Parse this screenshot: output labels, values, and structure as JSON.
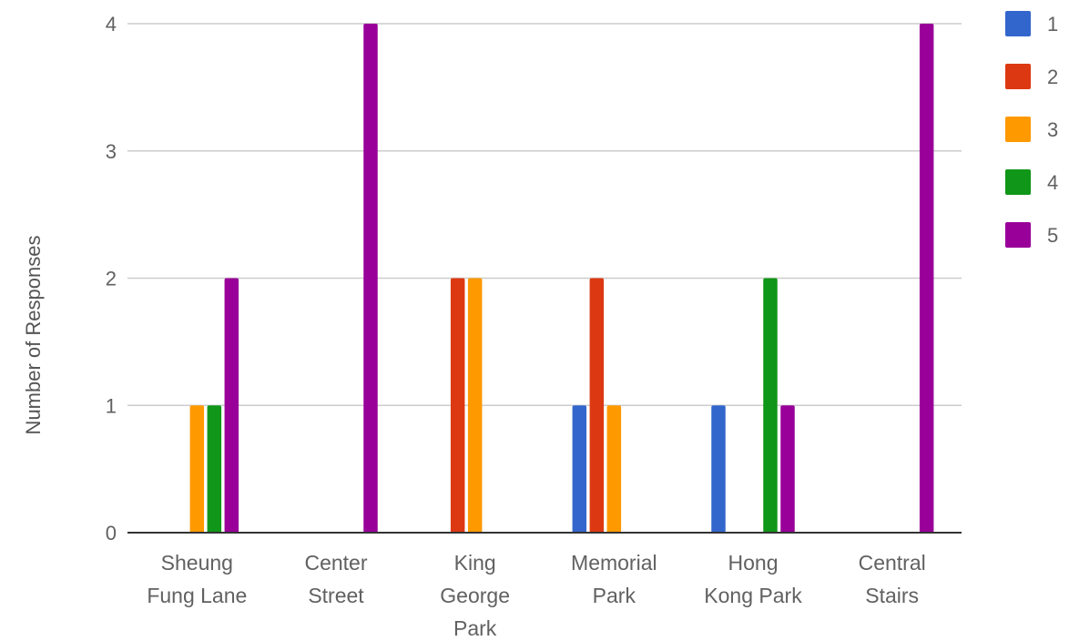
{
  "chart_data": {
    "type": "bar",
    "title": "",
    "xlabel": "",
    "ylabel": "Number of Responses",
    "ylim": [
      0,
      4
    ],
    "yticks": [
      0,
      1,
      2,
      3,
      4
    ],
    "grid": true,
    "legend_position": "right",
    "categories": [
      [
        "Sheung",
        "Fung Lane"
      ],
      [
        "Center",
        "Street"
      ],
      [
        "King",
        "George",
        "Park"
      ],
      [
        "Memorial",
        "Park"
      ],
      [
        "Hong",
        "Kong Park"
      ],
      [
        "Central",
        "Stairs"
      ]
    ],
    "series": [
      {
        "name": "1",
        "color": "#3366cc",
        "values": [
          0,
          0,
          0,
          1,
          1,
          0
        ]
      },
      {
        "name": "2",
        "color": "#dc3912",
        "values": [
          0,
          0,
          2,
          2,
          0,
          0
        ]
      },
      {
        "name": "3",
        "color": "#ff9900",
        "values": [
          1,
          0,
          2,
          1,
          0,
          0
        ]
      },
      {
        "name": "4",
        "color": "#109618",
        "values": [
          1,
          0,
          0,
          0,
          2,
          0
        ]
      },
      {
        "name": "5",
        "color": "#990099",
        "values": [
          2,
          4,
          0,
          0,
          1,
          4
        ]
      }
    ]
  }
}
